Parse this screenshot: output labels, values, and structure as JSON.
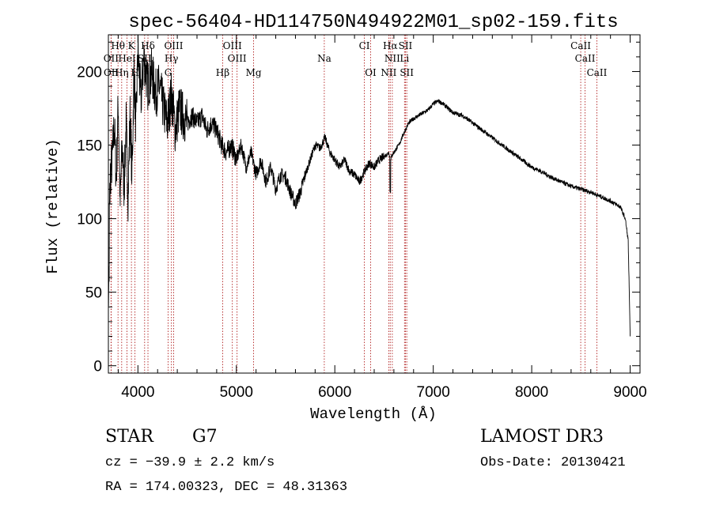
{
  "chart_data": {
    "type": "line",
    "title": "spec-56404-HD114750N494922M01_sp02-159.fits",
    "xlabel": "Wavelength (Å)",
    "ylabel": "Flux (relative)",
    "xlim": [
      3700,
      9100
    ],
    "ylim": [
      -5,
      225
    ],
    "xticks": [
      4000,
      5000,
      6000,
      7000,
      8000,
      9000
    ],
    "yticks": [
      0,
      50,
      100,
      150,
      200
    ],
    "grid": false,
    "series": [
      {
        "name": "spectrum",
        "x": [
          3700,
          3720,
          3740,
          3760,
          3780,
          3800,
          3820,
          3840,
          3860,
          3880,
          3900,
          3920,
          3940,
          3960,
          3980,
          4000,
          4030,
          4060,
          4100,
          4140,
          4180,
          4220,
          4260,
          4300,
          4340,
          4380,
          4420,
          4460,
          4500,
          4550,
          4600,
          4650,
          4700,
          4750,
          4800,
          4850,
          4900,
          4950,
          5000,
          5050,
          5100,
          5150,
          5200,
          5250,
          5300,
          5350,
          5400,
          5450,
          5500,
          5550,
          5600,
          5650,
          5700,
          5750,
          5800,
          5850,
          5900,
          5950,
          6000,
          6050,
          6100,
          6150,
          6200,
          6250,
          6300,
          6350,
          6400,
          6450,
          6500,
          6550,
          6563,
          6580,
          6600,
          6650,
          6700,
          6750,
          6800,
          6850,
          6900,
          6950,
          7000,
          7050,
          7100,
          7150,
          7200,
          7300,
          7400,
          7500,
          7600,
          7700,
          7800,
          7900,
          8000,
          8100,
          8200,
          8300,
          8400,
          8500,
          8600,
          8700,
          8800,
          8900,
          8950,
          8980,
          9000
        ],
        "y": [
          75,
          130,
          140,
          165,
          125,
          180,
          110,
          150,
          120,
          165,
          115,
          170,
          130,
          200,
          160,
          215,
          180,
          210,
          190,
          200,
          185,
          190,
          175,
          165,
          185,
          160,
          175,
          170,
          165,
          170,
          165,
          170,
          160,
          165,
          160,
          150,
          145,
          150,
          140,
          150,
          135,
          145,
          130,
          140,
          125,
          135,
          120,
          130,
          128,
          118,
          110,
          118,
          130,
          140,
          150,
          148,
          155,
          145,
          140,
          135,
          140,
          132,
          130,
          125,
          132,
          138,
          135,
          140,
          142,
          145,
          140,
          143,
          145,
          150,
          158,
          165,
          168,
          170,
          172,
          174,
          178,
          180,
          178,
          175,
          172,
          170,
          165,
          160,
          155,
          150,
          145,
          140,
          135,
          132,
          128,
          125,
          122,
          120,
          118,
          115,
          112,
          108,
          100,
          85,
          20
        ]
      }
    ],
    "line_markers": [
      {
        "label": "Hθ",
        "x": 3798
      },
      {
        "label": "K",
        "x": 3934
      },
      {
        "label": "Hδ",
        "x": 4102
      },
      {
        "label": "OIII",
        "x": 4363
      },
      {
        "label": "OIII",
        "x": 4959
      },
      {
        "label": "CI",
        "x": 6300
      },
      {
        "label": "Hα",
        "x": 6563
      },
      {
        "label": "SII",
        "x": 6717
      },
      {
        "label": "CaII",
        "x": 8498
      },
      {
        "label": "OII",
        "x": 3727
      },
      {
        "label": "HeI",
        "x": 3889
      },
      {
        "label": "SII",
        "x": 4068
      },
      {
        "label": "Hγ",
        "x": 4340
      },
      {
        "label": "OIII",
        "x": 5007
      },
      {
        "label": "Na",
        "x": 5893
      },
      {
        "label": "NII",
        "x": 6584
      },
      {
        "label": "Li",
        "x": 6708
      },
      {
        "label": "CaII",
        "x": 8542
      },
      {
        "label": "OII",
        "x": 3729
      },
      {
        "label": "Hη",
        "x": 3835
      },
      {
        "label": "H",
        "x": 3970
      },
      {
        "label": "G",
        "x": 4307
      },
      {
        "label": "Hβ",
        "x": 4861
      },
      {
        "label": "Mg",
        "x": 5175
      },
      {
        "label": "OI",
        "x": 6364
      },
      {
        "label": "NII",
        "x": 6548
      },
      {
        "label": "SII",
        "x": 6731
      },
      {
        "label": "CaII",
        "x": 8662
      }
    ]
  },
  "info": {
    "class": "STAR",
    "subclass": "G7",
    "cz": "cz = −39.9 ± 2.2 km/s",
    "radec": "RA = 174.00323, DEC =  48.31363",
    "survey": "LAMOST DR3",
    "obsdate": "Obs-Date: 20130421"
  }
}
